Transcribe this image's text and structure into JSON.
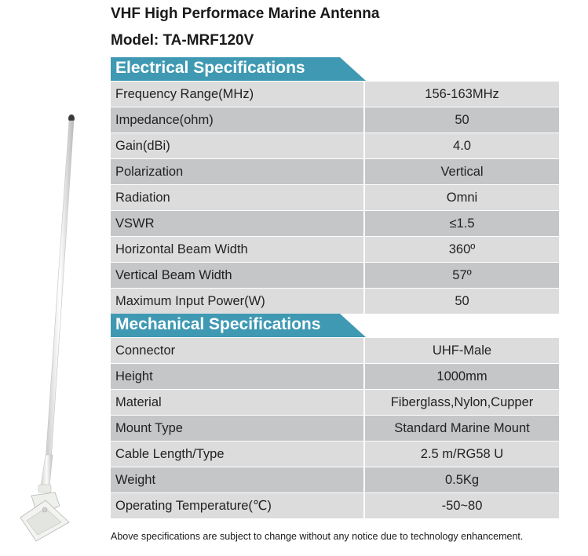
{
  "header": {
    "title": "VHF High Performace Marine Antenna",
    "model": "Model: TA-MRF120V"
  },
  "electrical": {
    "heading": "Electrical Specifications",
    "rows": [
      {
        "label": "Frequency Range(MHz)",
        "value": "156-163MHz"
      },
      {
        "label": "Impedance(ohm)",
        "value": "50"
      },
      {
        "label": "Gain(dBi)",
        "value": "4.0"
      },
      {
        "label": "Polarization",
        "value": "Vertical"
      },
      {
        "label": "Radiation",
        "value": "Omni"
      },
      {
        "label": "VSWR",
        "value": "≤1.5"
      },
      {
        "label": "Horizontal Beam Width",
        "value": "360º"
      },
      {
        "label": "Vertical Beam Width",
        "value": "57º"
      },
      {
        "label": "Maximum Input Power(W)",
        "value": "50"
      }
    ]
  },
  "mechanical": {
    "heading": "Mechanical Specifications",
    "rows": [
      {
        "label": "Connector",
        "value": "UHF-Male"
      },
      {
        "label": "Height",
        "value": "1000mm"
      },
      {
        "label": "Material",
        "value": "Fiberglass,Nylon,Cupper"
      },
      {
        "label": "Mount Type",
        "value": "Standard Marine Mount"
      },
      {
        "label": "Cable Length/Type",
        "value": "2.5 m/RG58 U"
      },
      {
        "label": "Weight",
        "value": "0.5Kg"
      },
      {
        "label": "Operating Temperature(℃)",
        "value": "-50~80"
      }
    ]
  },
  "footer": {
    "note": "Above specifications are subject to change without any notice due to technology enhancement."
  },
  "colors": {
    "section_header": "#3f99b3",
    "row_light": "#dcdcdd",
    "row_dark": "#c5c6c8"
  },
  "product_image": {
    "icon": "marine-antenna-icon"
  }
}
